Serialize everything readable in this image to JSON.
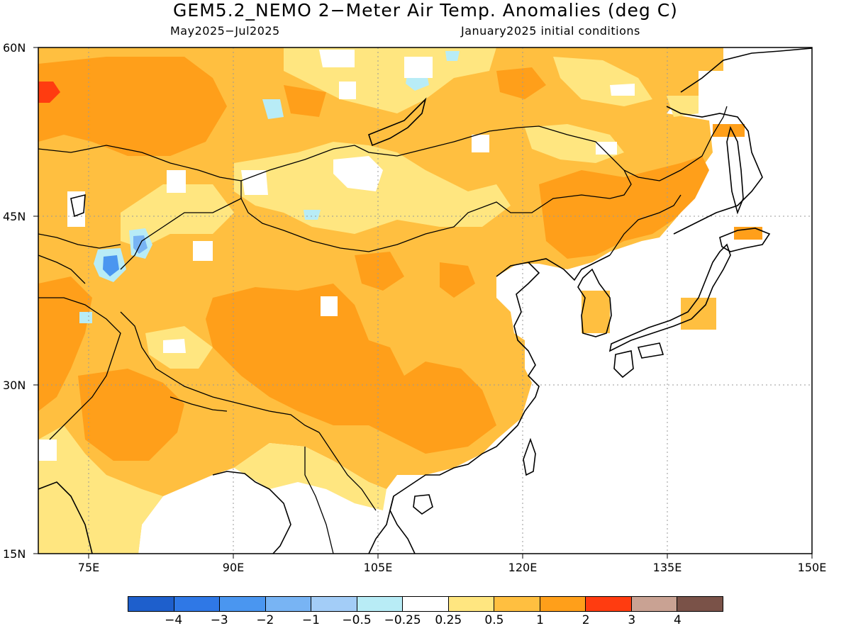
{
  "title": "GEM5.2_NEMO 2−Meter Air Temp. Anomalies (deg C)",
  "subtitle_left": "May2025−Jul2025",
  "subtitle_right": "January2025 initial conditions",
  "lat_labels": [
    "60N",
    "45N",
    "30N",
    "15N"
  ],
  "lon_labels": [
    "75E",
    "90E",
    "105E",
    "120E",
    "135E",
    "150E"
  ],
  "colorbar": {
    "colors": [
      "#1e5fcc",
      "#2f78e6",
      "#4a96f0",
      "#78b4f4",
      "#a3cdf7",
      "#b8ecf6",
      "#ffffff",
      "#ffe680",
      "#ffbf40",
      "#ff9f1a",
      "#ff3c10",
      "#c9a293",
      "#7a5248"
    ],
    "labels": [
      "−4",
      "−3",
      "−2",
      "−1",
      "−0.5",
      "−0.25",
      "0.25",
      "0.5",
      "1",
      "2",
      "3",
      "4"
    ]
  },
  "colors": {
    "anomaly_0_5_to_1": "#ffbf40",
    "anomaly_1_to_2": "#ff9f1a",
    "anomaly_0_25_to_0_5": "#ffe680",
    "anomaly_neg": "#78b4f4",
    "anomaly_2_to_3": "#ff3c10",
    "coastline": "#000000",
    "gridline": "#999999"
  }
}
